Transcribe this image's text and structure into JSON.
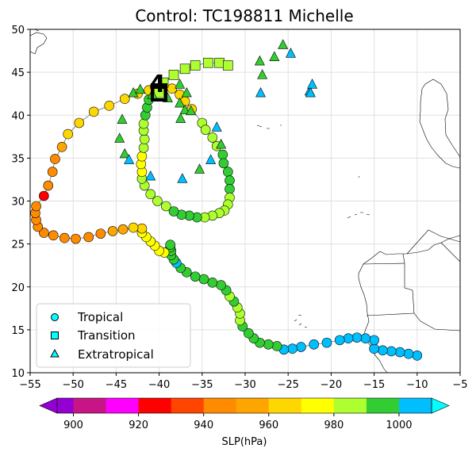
{
  "chart_data": {
    "type": "scatter",
    "title": "Control: TC198811 Michelle",
    "xlim": [
      -55,
      -5
    ],
    "ylim": [
      10,
      50
    ],
    "xticks": [
      -55,
      -50,
      -45,
      -40,
      -35,
      -30,
      -25,
      -20,
      -15,
      -10,
      -5
    ],
    "yticks": [
      10,
      15,
      20,
      25,
      30,
      35,
      40,
      45,
      50
    ],
    "xtick_labels": [
      "−55",
      "−50",
      "−45",
      "−40",
      "−35",
      "−30",
      "−25",
      "−20",
      "−15",
      "−10",
      "−5"
    ],
    "ytick_labels": [
      "10",
      "15",
      "20",
      "25",
      "30",
      "35",
      "40",
      "45",
      "50"
    ],
    "grid": true,
    "legend": {
      "position": "bottom-left",
      "entries": [
        {
          "label": "Tropical",
          "marker": "circle"
        },
        {
          "label": "Transition",
          "marker": "square"
        },
        {
          "label": "Extratropical",
          "marker": "triangle"
        }
      ]
    },
    "colorbar": {
      "label": "SLP(hPa)",
      "min": 895,
      "max": 1010,
      "ticks": [
        900,
        920,
        940,
        960,
        980,
        1000
      ],
      "tick_labels": [
        "900",
        "920",
        "940",
        "960",
        "980",
        "1000"
      ],
      "levels": [
        {
          "from": 895,
          "to": 900,
          "color": "#9400d3"
        },
        {
          "from": 900,
          "to": 905,
          "color": "#c71585"
        },
        {
          "from": 905,
          "to": 910,
          "color": "#c71585"
        },
        {
          "from": 910,
          "to": 915,
          "color": "#ff00ff"
        },
        {
          "from": 915,
          "to": 920,
          "color": "#ff00ff"
        },
        {
          "from": 920,
          "to": 925,
          "color": "#ff0000"
        },
        {
          "from": 925,
          "to": 930,
          "color": "#ff0000"
        },
        {
          "from": 930,
          "to": 935,
          "color": "#ff4500"
        },
        {
          "from": 935,
          "to": 940,
          "color": "#ff4500"
        },
        {
          "from": 940,
          "to": 945,
          "color": "#ff8c00"
        },
        {
          "from": 945,
          "to": 950,
          "color": "#ff8c00"
        },
        {
          "from": 950,
          "to": 955,
          "color": "#ffa500"
        },
        {
          "from": 955,
          "to": 960,
          "color": "#ffa500"
        },
        {
          "from": 960,
          "to": 965,
          "color": "#ffd700"
        },
        {
          "from": 965,
          "to": 970,
          "color": "#ffd700"
        },
        {
          "from": 970,
          "to": 975,
          "color": "#ffff00"
        },
        {
          "from": 975,
          "to": 980,
          "color": "#ffff00"
        },
        {
          "from": 980,
          "to": 985,
          "color": "#adff2f"
        },
        {
          "from": 985,
          "to": 990,
          "color": "#adff2f"
        },
        {
          "from": 990,
          "to": 995,
          "color": "#32cd32"
        },
        {
          "from": 995,
          "to": 1000,
          "color": "#32cd32"
        },
        {
          "from": 1000,
          "to": 1005,
          "color": "#00bfff"
        },
        {
          "from": 1005,
          "to": 1010,
          "color": "#00bfff"
        }
      ],
      "extend_high_color": "#00ffff",
      "extend_low_color": "#9400d3"
    },
    "track": [
      [
        -10,
        12,
        1003,
        "T"
      ],
      [
        -11,
        12.2,
        1003,
        "T"
      ],
      [
        -12,
        12.4,
        1003,
        "T"
      ],
      [
        -13,
        12.5,
        1003,
        "T"
      ],
      [
        -14,
        12.6,
        1003,
        "T"
      ],
      [
        -15,
        12.8,
        1003,
        "T"
      ],
      [
        -15,
        13.8,
        1003,
        "T"
      ],
      [
        -16,
        14,
        1003,
        "T"
      ],
      [
        -17,
        14.1,
        1003,
        "T"
      ],
      [
        -18,
        14,
        1003,
        "T"
      ],
      [
        -19,
        13.8,
        1003,
        "T"
      ],
      [
        -20.5,
        13.5,
        1003,
        "T"
      ],
      [
        -22,
        13.3,
        1003,
        "T"
      ],
      [
        -23.5,
        13,
        1003,
        "T"
      ],
      [
        -24.5,
        12.8,
        1003,
        "T"
      ],
      [
        -25.5,
        12.7,
        1003,
        "T"
      ],
      [
        -26.3,
        13.1,
        997,
        "T"
      ],
      [
        -27.3,
        13.3,
        997,
        "T"
      ],
      [
        -28.3,
        13.5,
        997,
        "T"
      ],
      [
        -29,
        14,
        997,
        "T"
      ],
      [
        -29.6,
        14.6,
        997,
        "T"
      ],
      [
        -30.3,
        15.4,
        997,
        "T"
      ],
      [
        -30.6,
        16.1,
        985,
        "T"
      ],
      [
        -30.6,
        16.9,
        985,
        "T"
      ],
      [
        -30.9,
        17.6,
        985,
        "T"
      ],
      [
        -31.3,
        18.3,
        997,
        "T"
      ],
      [
        -31.8,
        18.9,
        985,
        "T"
      ],
      [
        -32.2,
        19.6,
        997,
        "T"
      ],
      [
        -32.8,
        20.2,
        997,
        "T"
      ],
      [
        -33.8,
        20.5,
        997,
        "T"
      ],
      [
        -34.8,
        20.9,
        997,
        "T"
      ],
      [
        -35.8,
        21.2,
        997,
        "T"
      ],
      [
        -36.8,
        21.7,
        997,
        "T"
      ],
      [
        -37.5,
        22.2,
        997,
        "T"
      ],
      [
        -38,
        22.8,
        1003,
        "T"
      ],
      [
        -38.3,
        23.2,
        997,
        "T"
      ],
      [
        -38.6,
        23.7,
        997,
        "T"
      ],
      [
        -38.6,
        24.2,
        997,
        "T"
      ],
      [
        -38.7,
        24.6,
        997,
        "T"
      ],
      [
        -38.7,
        24.9,
        997,
        "T"
      ],
      [
        -39.4,
        24,
        977,
        "T"
      ],
      [
        -40,
        24.2,
        977,
        "T"
      ],
      [
        -40.5,
        24.8,
        977,
        "T"
      ],
      [
        -41,
        25.3,
        977,
        "T"
      ],
      [
        -41.5,
        25.8,
        977,
        "T"
      ],
      [
        -42,
        26.3,
        977,
        "T"
      ],
      [
        -42,
        26.8,
        967,
        "T"
      ],
      [
        -43,
        26.9,
        967,
        "T"
      ],
      [
        -44.2,
        26.7,
        957,
        "T"
      ],
      [
        -45.4,
        26.5,
        957,
        "T"
      ],
      [
        -46.8,
        26.2,
        948,
        "T"
      ],
      [
        -48.2,
        25.8,
        948,
        "T"
      ],
      [
        -49.7,
        25.6,
        948,
        "T"
      ],
      [
        -51,
        25.7,
        948,
        "T"
      ],
      [
        -52.3,
        26,
        948,
        "T"
      ],
      [
        -53.4,
        26.3,
        948,
        "T"
      ],
      [
        -54.1,
        27,
        943,
        "T"
      ],
      [
        -54.3,
        27.8,
        943,
        "T"
      ],
      [
        -54.4,
        28.6,
        943,
        "T"
      ],
      [
        -54.3,
        29.4,
        943,
        "T"
      ],
      [
        -53.4,
        30.6,
        928,
        "T"
      ],
      [
        -52.9,
        31.8,
        948,
        "T"
      ],
      [
        -52.4,
        33.4,
        948,
        "T"
      ],
      [
        -52.1,
        34.9,
        948,
        "T"
      ],
      [
        -51.3,
        36.3,
        957,
        "T"
      ],
      [
        -50.6,
        37.8,
        967,
        "T"
      ],
      [
        -49.3,
        39.1,
        967,
        "T"
      ],
      [
        -47.6,
        40.4,
        967,
        "T"
      ],
      [
        -45.8,
        41.1,
        967,
        "T"
      ],
      [
        -44,
        41.9,
        967,
        "T"
      ],
      [
        -42.5,
        42.5,
        967,
        "T"
      ],
      [
        -41.2,
        42.9,
        967,
        "T"
      ],
      [
        -39.8,
        43.1,
        967,
        "T"
      ],
      [
        -38.5,
        43.1,
        967,
        "T"
      ],
      [
        -37.6,
        42.4,
        967,
        "T"
      ],
      [
        -37,
        41.6,
        967,
        "T"
      ],
      [
        -36.2,
        40.7,
        967,
        "T"
      ],
      [
        -35,
        39.1,
        985,
        "T"
      ],
      [
        -34.6,
        38.3,
        985,
        "T"
      ],
      [
        -33.8,
        37.4,
        985,
        "T"
      ],
      [
        -33.3,
        36.4,
        985,
        "T"
      ],
      [
        -32.6,
        35.4,
        997,
        "T"
      ],
      [
        -32.5,
        34.4,
        997,
        "T"
      ],
      [
        -32,
        33.4,
        997,
        "T"
      ],
      [
        -31.8,
        32.4,
        997,
        "T"
      ],
      [
        -31.8,
        31.4,
        997,
        "T"
      ],
      [
        -31.8,
        30.4,
        985,
        "T"
      ],
      [
        -32,
        29.6,
        985,
        "T"
      ],
      [
        -32.4,
        28.9,
        985,
        "T"
      ],
      [
        -33,
        28.6,
        985,
        "T"
      ],
      [
        -33.8,
        28.3,
        985,
        "T"
      ],
      [
        -34.7,
        28.1,
        985,
        "T"
      ],
      [
        -35.6,
        28.1,
        997,
        "T"
      ],
      [
        -36.5,
        28.3,
        997,
        "T"
      ],
      [
        -37.4,
        28.4,
        997,
        "T"
      ],
      [
        -38.3,
        28.8,
        997,
        "T"
      ],
      [
        -39.2,
        29.4,
        985,
        "T"
      ],
      [
        -40.2,
        30,
        985,
        "T"
      ],
      [
        -41,
        30.8,
        985,
        "T"
      ],
      [
        -41.7,
        31.8,
        985,
        "T"
      ],
      [
        -42,
        32.6,
        985,
        "T"
      ],
      [
        -42,
        33.4,
        977,
        "T"
      ],
      [
        -42.1,
        34.3,
        977,
        "T"
      ],
      [
        -42,
        35.2,
        977,
        "T"
      ],
      [
        -41.8,
        36.2,
        985,
        "T"
      ],
      [
        -41.7,
        37.2,
        985,
        "T"
      ],
      [
        -41.8,
        38.2,
        985,
        "T"
      ],
      [
        -41.8,
        39,
        985,
        "T"
      ],
      [
        -41.6,
        40,
        997,
        "T"
      ],
      [
        -41.4,
        40.9,
        997,
        "T"
      ],
      [
        -41.2,
        41.8,
        997,
        "T"
      ],
      [
        -40,
        42.6,
        985,
        "X"
      ],
      [
        -39.5,
        43.8,
        985,
        "X"
      ],
      [
        -38.3,
        44.7,
        985,
        "X"
      ],
      [
        -37,
        45.4,
        985,
        "X"
      ],
      [
        -35.8,
        45.8,
        985,
        "X"
      ],
      [
        -34.3,
        46.1,
        985,
        "X"
      ],
      [
        -33,
        46.1,
        985,
        "X"
      ],
      [
        -32,
        45.8,
        985,
        "X"
      ],
      [
        -43,
        42.6,
        997,
        "E"
      ],
      [
        -42.2,
        43,
        997,
        "E"
      ],
      [
        -40.8,
        42.4,
        997,
        "E"
      ],
      [
        -39,
        42,
        997,
        "E"
      ],
      [
        -37.6,
        41.4,
        997,
        "E"
      ],
      [
        -37,
        40.6,
        997,
        "E"
      ],
      [
        -36.3,
        40.5,
        997,
        "E"
      ],
      [
        -37.5,
        39.6,
        997,
        "E"
      ],
      [
        -44.3,
        39.5,
        997,
        "E"
      ],
      [
        -44.6,
        37.3,
        997,
        "E"
      ],
      [
        -44,
        35.5,
        997,
        "E"
      ],
      [
        -43.5,
        34.8,
        1003,
        "E"
      ],
      [
        -41,
        32.9,
        1003,
        "E"
      ],
      [
        -37.3,
        32.6,
        1003,
        "E"
      ],
      [
        -35.3,
        33.7,
        997,
        "E"
      ],
      [
        -34,
        34.8,
        1003,
        "E"
      ],
      [
        -32.8,
        36.6,
        997,
        "E"
      ],
      [
        -33.3,
        38.6,
        1003,
        "E"
      ],
      [
        -36.8,
        42.6,
        997,
        "E"
      ],
      [
        -37.6,
        43.6,
        997,
        "E"
      ],
      [
        -28.2,
        42.6,
        1003,
        "E"
      ],
      [
        -28,
        44.7,
        997,
        "E"
      ],
      [
        -28.3,
        46.3,
        997,
        "E"
      ],
      [
        -26.6,
        46.8,
        997,
        "E"
      ],
      [
        -25.6,
        48.2,
        997,
        "E"
      ],
      [
        -24.7,
        47.2,
        1003,
        "E"
      ],
      [
        -22.5,
        42.8,
        1003,
        "E"
      ],
      [
        -22.2,
        43.6,
        1003,
        "E"
      ],
      [
        -22.4,
        42.6,
        1003,
        "E"
      ]
    ]
  }
}
